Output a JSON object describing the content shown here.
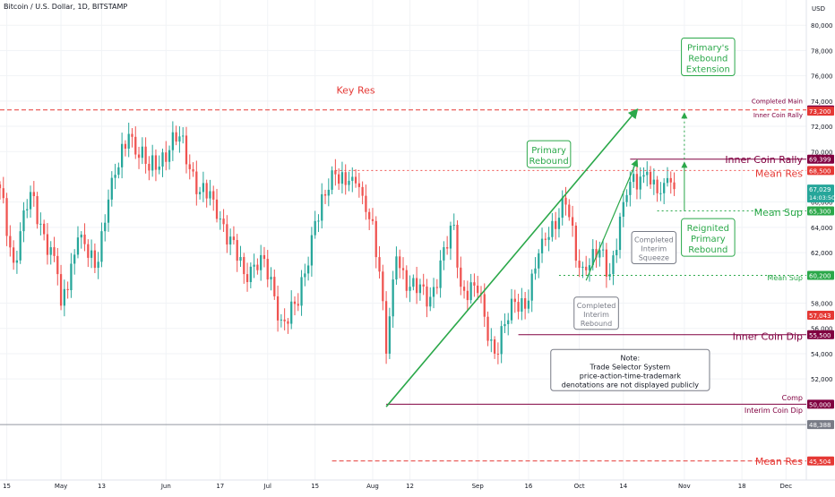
{
  "header": {
    "symbol_text": "Bitcoin / U.S. Dollar, 1D, BITSTAMP",
    "currency": "USD"
  },
  "chart_data": {
    "type": "candlestick",
    "colors": {
      "up": "#26a69a",
      "down": "#ef5350",
      "trend": "#2ba84a",
      "key_res": "#e53935",
      "dip": "#800040",
      "grid": "#f1f3f6",
      "level": "#787b86"
    },
    "y_axis": {
      "min": 44000,
      "max": 82000,
      "ticks": [
        52000,
        54000,
        56000,
        58000,
        62000,
        64000,
        66000,
        70000,
        72000,
        74000,
        76000,
        78000,
        80000
      ]
    },
    "x_axis": {
      "start": "2024-04-13",
      "end": "2024-12-07",
      "ticks": [
        {
          "date": "2024-04-15",
          "label": "15"
        },
        {
          "date": "2024-05-01",
          "label": "May"
        },
        {
          "date": "2024-05-13",
          "label": "13"
        },
        {
          "date": "2024-06-01",
          "label": "Jun"
        },
        {
          "date": "2024-06-17",
          "label": "17"
        },
        {
          "date": "2024-07-01",
          "label": "Jul"
        },
        {
          "date": "2024-07-15",
          "label": "15"
        },
        {
          "date": "2024-08-01",
          "label": "Aug"
        },
        {
          "date": "2024-08-12",
          "label": "12"
        },
        {
          "date": "2024-09-01",
          "label": "Sep"
        },
        {
          "date": "2024-09-16",
          "label": "16"
        },
        {
          "date": "2024-10-01",
          "label": "Oct"
        },
        {
          "date": "2024-10-14",
          "label": "14"
        },
        {
          "date": "2024-11-01",
          "label": "Nov"
        },
        {
          "date": "2024-11-18",
          "label": "18"
        },
        {
          "date": "2024-12-01",
          "label": "Dec"
        }
      ]
    },
    "anchors": [
      {
        "date": "2024-04-13",
        "close": 67100
      },
      {
        "date": "2024-04-17",
        "close": 61200
      },
      {
        "date": "2024-04-22",
        "close": 66800
      },
      {
        "date": "2024-04-30",
        "close": 60300
      },
      {
        "date": "2024-05-01",
        "close": 57800
      },
      {
        "date": "2024-05-06",
        "close": 63200
      },
      {
        "date": "2024-05-11",
        "close": 60800
      },
      {
        "date": "2024-05-15",
        "close": 66200
      },
      {
        "date": "2024-05-21",
        "close": 71400
      },
      {
        "date": "2024-05-27",
        "close": 68500
      },
      {
        "date": "2024-06-05",
        "close": 71200
      },
      {
        "date": "2024-06-11",
        "close": 66800
      },
      {
        "date": "2024-06-15",
        "close": 66200
      },
      {
        "date": "2024-06-24",
        "close": 60300
      },
      {
        "date": "2024-06-29",
        "close": 61800
      },
      {
        "date": "2024-07-05",
        "close": 56700
      },
      {
        "date": "2024-07-10",
        "close": 57800
      },
      {
        "date": "2024-07-15",
        "close": 64500
      },
      {
        "date": "2024-07-21",
        "close": 68200
      },
      {
        "date": "2024-07-26",
        "close": 68000
      },
      {
        "date": "2024-07-29",
        "close": 66500
      },
      {
        "date": "2024-08-01",
        "close": 64500
      },
      {
        "date": "2024-08-03",
        "close": 60500
      },
      {
        "date": "2024-08-05",
        "close": 54000
      },
      {
        "date": "2024-08-08",
        "close": 61700
      },
      {
        "date": "2024-08-12",
        "close": 59300
      },
      {
        "date": "2024-08-18",
        "close": 58500
      },
      {
        "date": "2024-08-25",
        "close": 64200
      },
      {
        "date": "2024-08-27",
        "close": 59300
      },
      {
        "date": "2024-09-01",
        "close": 58800
      },
      {
        "date": "2024-09-06",
        "close": 54000
      },
      {
        "date": "2024-09-12",
        "close": 58100
      },
      {
        "date": "2024-09-16",
        "close": 58200
      },
      {
        "date": "2024-09-20",
        "close": 63100
      },
      {
        "date": "2024-09-27",
        "close": 65800
      },
      {
        "date": "2024-10-01",
        "close": 60800
      },
      {
        "date": "2024-10-03",
        "close": 60600
      },
      {
        "date": "2024-10-07",
        "close": 62200
      },
      {
        "date": "2024-10-10",
        "close": 60300
      },
      {
        "date": "2024-10-14",
        "close": 66000
      },
      {
        "date": "2024-10-16",
        "close": 67600
      },
      {
        "date": "2024-10-21",
        "close": 68400
      },
      {
        "date": "2024-10-22",
        "close": 67400
      },
      {
        "date": "2024-10-25",
        "close": 66700
      },
      {
        "date": "2024-10-27",
        "close": 67900
      },
      {
        "date": "2024-10-29",
        "close": 67029
      }
    ],
    "price_tags": [
      {
        "value": 73300,
        "label": "73,300",
        "color": "#800040"
      },
      {
        "value": 73200,
        "label": "73,200",
        "color": "#e53935"
      },
      {
        "value": 69399,
        "label": "69,399",
        "color": "#800040"
      },
      {
        "value": 68500,
        "label": "68,500",
        "color": "#e53935"
      },
      {
        "value": 67029,
        "label": "67,029",
        "color": "#26a69a",
        "sub": "14:03:50"
      },
      {
        "value": 65300,
        "label": "65,300",
        "color": "#2ba84a"
      },
      {
        "value": 60200,
        "label": "60,200",
        "color": "#2ba84a"
      },
      {
        "value": 57043,
        "label": "57,043",
        "color": "#e53935"
      },
      {
        "value": 55500,
        "label": "55,500",
        "color": "#800040"
      },
      {
        "value": 50000,
        "label": "50,000",
        "color": "#800040"
      },
      {
        "value": 48388,
        "label": "48,388",
        "color": "#787b86"
      },
      {
        "value": 45504,
        "label": "45,504",
        "color": "#e53935"
      }
    ],
    "levels": [
      {
        "value": 73300,
        "from": "2024-04-13",
        "color": "#e53935",
        "dash": "5,3",
        "width": 1
      },
      {
        "value": 69399,
        "from": "2024-10-16",
        "color": "#800040",
        "dash": "",
        "width": 1
      },
      {
        "value": 68500,
        "from": "2024-07-21",
        "color": "#ef5350",
        "dash": "2,3",
        "width": 1
      },
      {
        "value": 65300,
        "from": "2024-10-24",
        "color": "#2ba84a",
        "dash": "2,3",
        "width": 1
      },
      {
        "value": 60200,
        "from": "2024-09-25",
        "color": "#2ba84a",
        "dash": "2,3",
        "width": 1
      },
      {
        "value": 55500,
        "from": "2024-09-13",
        "color": "#800040",
        "dash": "",
        "width": 1
      },
      {
        "value": 50000,
        "from": "2024-08-05",
        "color": "#800040",
        "dash": "",
        "width": 1
      },
      {
        "value": 48388,
        "from": "2024-04-13",
        "color": "#9598a1",
        "dash": "",
        "width": 1
      },
      {
        "value": 45504,
        "from": "2024-07-20",
        "color": "#e53935",
        "dash": "5,3",
        "width": 1
      }
    ],
    "level_labels": [
      {
        "text": "Key Res",
        "date": "2024-07-27",
        "value": 74600,
        "color": "#e53935",
        "size": 11,
        "align": "middle"
      },
      {
        "text": "Completed Main",
        "date": "2024-11-30",
        "value": 73800,
        "color": "#800040",
        "size": 7,
        "align": "end"
      },
      {
        "text": "Inner Coin Rally",
        "date": "2024-11-30",
        "value": 72700,
        "color": "#800040",
        "size": 7,
        "align": "end"
      },
      {
        "text": "Inner Coin Rally",
        "date": "2024-11-30",
        "value": 69100,
        "color": "#800040",
        "size": 11,
        "align": "end"
      },
      {
        "text": "Mean Res",
        "date": "2024-11-30",
        "value": 68000,
        "color": "#e53935",
        "size": 11,
        "align": "end"
      },
      {
        "text": "Mean Sup",
        "date": "2024-11-30",
        "value": 64900,
        "color": "#2ba84a",
        "size": 11,
        "align": "end"
      },
      {
        "text": "Mean Sup",
        "date": "2024-11-30",
        "value": 59800,
        "color": "#2ba84a",
        "size": 8,
        "align": "end"
      },
      {
        "text": "Inner Coin Dip",
        "date": "2024-11-30",
        "value": 55100,
        "color": "#800040",
        "size": 11,
        "align": "end"
      },
      {
        "text": "Comp",
        "date": "2024-11-30",
        "value": 50300,
        "color": "#800040",
        "size": 8,
        "align": "end"
      },
      {
        "text": "Interim Coin Dip",
        "date": "2024-11-30",
        "value": 49300,
        "color": "#800040",
        "size": 8,
        "align": "end"
      },
      {
        "text": "Mean Res",
        "date": "2024-11-30",
        "value": 45200,
        "color": "#e53935",
        "size": 11,
        "align": "end"
      }
    ],
    "trend_lines": [
      {
        "from": {
          "date": "2024-08-05",
          "value": 49800
        },
        "to": {
          "date": "2024-10-18",
          "value": 73300
        },
        "color": "#2ba84a",
        "width": 1.6,
        "arrow": true
      },
      {
        "from": {
          "date": "2024-10-03",
          "value": 59800
        },
        "to": {
          "date": "2024-10-18",
          "value": 69300
        },
        "color": "#2ba84a",
        "width": 1.2,
        "arrow": true
      }
    ],
    "annotations": [
      {
        "name": "primary-rebound",
        "lines": [
          "Primary",
          "Rebound"
        ],
        "date": "2024-09-22",
        "value": 69800,
        "color": "#2ba84a",
        "size": 10
      },
      {
        "name": "primarys-rebound-extension",
        "lines": [
          "Primary's",
          "Rebound",
          "Extension"
        ],
        "date": "2024-11-08",
        "value": 77500,
        "color": "#2ba84a",
        "size": 10
      },
      {
        "name": "reignited-primary-rebound",
        "lines": [
          "Reignited",
          "Primary",
          "Rebound"
        ],
        "date": "2024-11-08",
        "value": 63200,
        "color": "#2ba84a",
        "size": 10
      },
      {
        "name": "completed-interim-squeeze",
        "lines": [
          "Completed",
          "Interim",
          "Squeeze"
        ],
        "date": "2024-10-23",
        "value": 62400,
        "color": "#787b86",
        "size": 8
      },
      {
        "name": "completed-interim-rebound",
        "lines": [
          "Completed",
          "Interim",
          "Rebound"
        ],
        "date": "2024-10-06",
        "value": 57200,
        "color": "#787b86",
        "size": 8
      },
      {
        "name": "note",
        "lines": [
          "Note:",
          "Trade Selector System",
          "price-action-time-trademark",
          "denotations are not displayed publicly"
        ],
        "date": "2024-10-16",
        "value": 52700,
        "color": "#131722",
        "size": 8
      }
    ]
  }
}
